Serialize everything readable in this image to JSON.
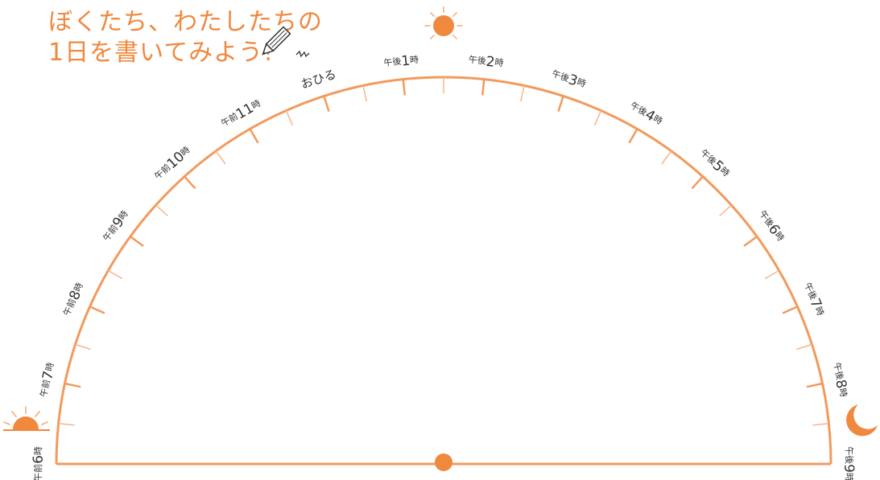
{
  "title": {
    "line1": "ぼくたち、わたしたちの",
    "line2": "1日を書いてみよう!"
  },
  "dial": {
    "hour_labels": [
      {
        "prefix": "午前",
        "num": "6",
        "suffix": "時"
      },
      {
        "prefix": "午前",
        "num": "7",
        "suffix": "時"
      },
      {
        "prefix": "午前",
        "num": "8",
        "suffix": "時"
      },
      {
        "prefix": "午前",
        "num": "9",
        "suffix": "時"
      },
      {
        "prefix": "午前",
        "num": "10",
        "suffix": "時"
      },
      {
        "prefix": "午前",
        "num": "11",
        "suffix": "時"
      },
      {
        "prefix": "",
        "num": "",
        "suffix": "",
        "text": "おひる"
      },
      {
        "prefix": "午後",
        "num": "1",
        "suffix": "時"
      },
      {
        "prefix": "午後",
        "num": "2",
        "suffix": "時"
      },
      {
        "prefix": "午後",
        "num": "3",
        "suffix": "時"
      },
      {
        "prefix": "午後",
        "num": "4",
        "suffix": "時"
      },
      {
        "prefix": "午後",
        "num": "5",
        "suffix": "時"
      },
      {
        "prefix": "午後",
        "num": "6",
        "suffix": "時"
      },
      {
        "prefix": "午後",
        "num": "7",
        "suffix": "時"
      },
      {
        "prefix": "午後",
        "num": "8",
        "suffix": "時"
      },
      {
        "prefix": "午後",
        "num": "9",
        "suffix": "時"
      }
    ],
    "hours_span": 15,
    "ticks_per_hour": 2
  },
  "icons": {
    "sunrise": "sunrise-icon",
    "noon_sun": "sun-icon",
    "moon": "crescent-moon-icon",
    "pencil": "pencil-icon"
  },
  "colors": {
    "accent": "#f0883e",
    "line": "#f29a5c",
    "tick": "#f6b58a",
    "label": "#333333"
  }
}
